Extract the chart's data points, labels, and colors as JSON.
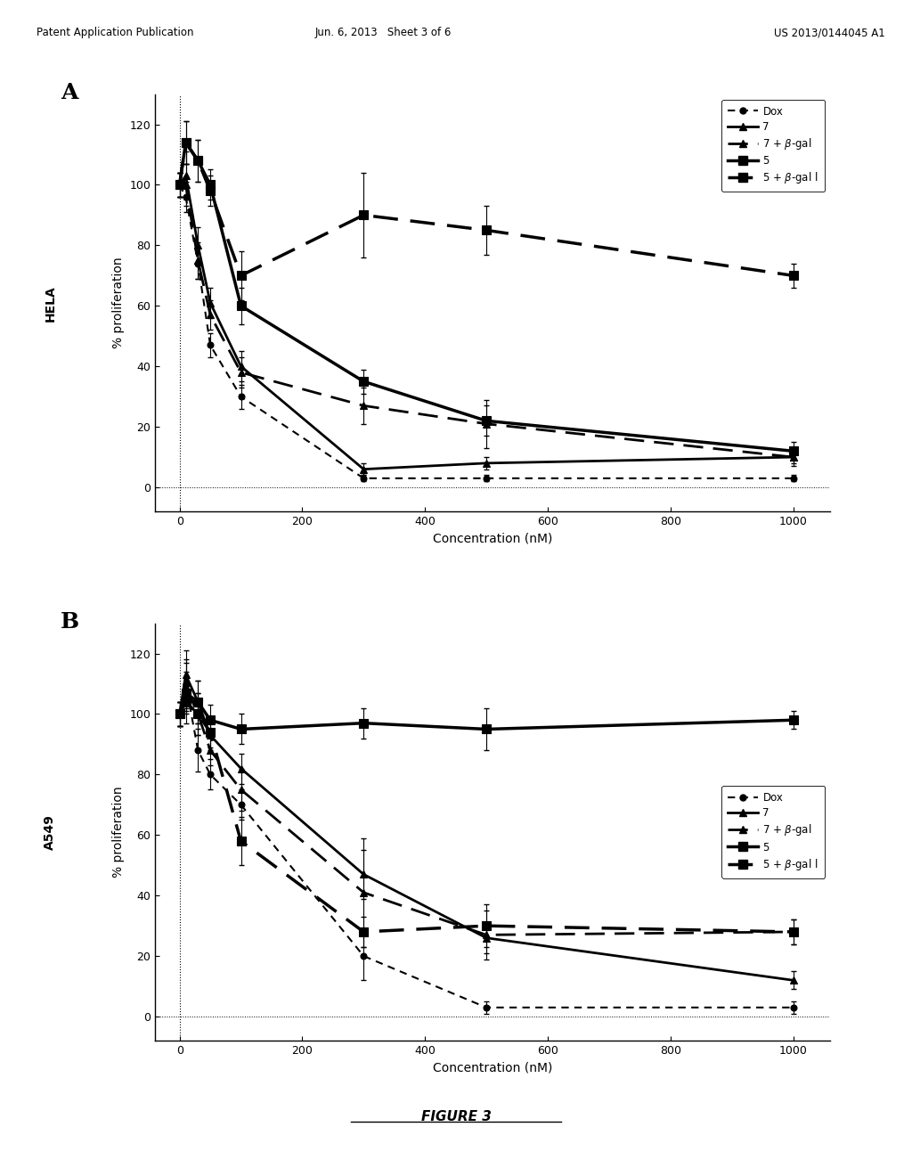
{
  "panel_A": {
    "cell_line": "HELA",
    "xlabel": "Concentration (nM)",
    "ylabel": "% proliferation",
    "xlim": [
      -40,
      1060
    ],
    "ylim": [
      -8,
      130
    ],
    "xticks": [
      0,
      200,
      400,
      600,
      800,
      1000
    ],
    "yticks": [
      0,
      20,
      40,
      60,
      80,
      100,
      120
    ],
    "series": {
      "Dox": {
        "x": [
          0,
          10,
          30,
          50,
          100,
          300,
          500,
          1000
        ],
        "y": [
          100,
          96,
          74,
          47,
          30,
          3,
          3,
          3
        ],
        "yerr": [
          4,
          5,
          5,
          4,
          4,
          1,
          1,
          1
        ]
      },
      "7": {
        "x": [
          0,
          10,
          30,
          50,
          100,
          300,
          500,
          1000
        ],
        "y": [
          100,
          103,
          80,
          61,
          40,
          6,
          8,
          10
        ],
        "yerr": [
          4,
          8,
          6,
          5,
          5,
          2,
          2,
          2
        ]
      },
      "7bgal": {
        "x": [
          0,
          10,
          30,
          50,
          100,
          300,
          500,
          1000
        ],
        "y": [
          100,
          100,
          75,
          57,
          38,
          27,
          21,
          10
        ],
        "yerr": [
          4,
          7,
          6,
          5,
          5,
          6,
          8,
          3
        ]
      },
      "5": {
        "x": [
          0,
          10,
          30,
          50,
          100,
          300,
          500,
          1000
        ],
        "y": [
          100,
          114,
          108,
          100,
          60,
          35,
          22,
          12
        ],
        "yerr": [
          4,
          7,
          7,
          5,
          6,
          4,
          5,
          3
        ]
      },
      "5bgal": {
        "x": [
          0,
          10,
          30,
          50,
          100,
          300,
          500,
          1000
        ],
        "y": [
          100,
          114,
          108,
          98,
          70,
          90,
          85,
          70
        ],
        "yerr": [
          4,
          7,
          7,
          5,
          8,
          14,
          8,
          4
        ]
      }
    }
  },
  "panel_B": {
    "cell_line": "A549",
    "xlabel": "Concentration (nM)",
    "ylabel": "% proliferation",
    "xlim": [
      -40,
      1060
    ],
    "ylim": [
      -8,
      130
    ],
    "xticks": [
      0,
      200,
      400,
      600,
      800,
      1000
    ],
    "yticks": [
      0,
      20,
      40,
      60,
      80,
      100,
      120
    ],
    "series": {
      "Dox": {
        "x": [
          0,
          10,
          30,
          50,
          100,
          300,
          500,
          1000
        ],
        "y": [
          100,
          110,
          88,
          80,
          70,
          20,
          3,
          3
        ],
        "yerr": [
          4,
          8,
          7,
          5,
          5,
          8,
          2,
          2
        ]
      },
      "7": {
        "x": [
          0,
          10,
          30,
          50,
          100,
          300,
          500,
          1000
        ],
        "y": [
          100,
          113,
          104,
          93,
          82,
          47,
          26,
          12
        ],
        "yerr": [
          4,
          8,
          7,
          5,
          5,
          8,
          5,
          3
        ]
      },
      "7bgal": {
        "x": [
          0,
          10,
          30,
          50,
          100,
          300,
          500,
          1000
        ],
        "y": [
          100,
          109,
          100,
          88,
          75,
          41,
          27,
          28
        ],
        "yerr": [
          4,
          8,
          7,
          5,
          7,
          18,
          8,
          4
        ]
      },
      "5": {
        "x": [
          0,
          10,
          30,
          50,
          100,
          300,
          500,
          1000
        ],
        "y": [
          100,
          107,
          104,
          98,
          95,
          97,
          95,
          98
        ],
        "yerr": [
          4,
          7,
          7,
          5,
          5,
          5,
          7,
          3
        ]
      },
      "5bgal": {
        "x": [
          0,
          10,
          30,
          50,
          100,
          300,
          500,
          1000
        ],
        "y": [
          100,
          104,
          100,
          94,
          58,
          28,
          30,
          28
        ],
        "yerr": [
          4,
          7,
          7,
          5,
          8,
          5,
          7,
          4
        ]
      }
    }
  },
  "header_left": "Patent Application Publication",
  "header_mid": "Jun. 6, 2013   Sheet 3 of 6",
  "header_right": "US 2013/0144045 A1",
  "figure_label": "FIGURE 3",
  "bg_color": "#ffffff"
}
